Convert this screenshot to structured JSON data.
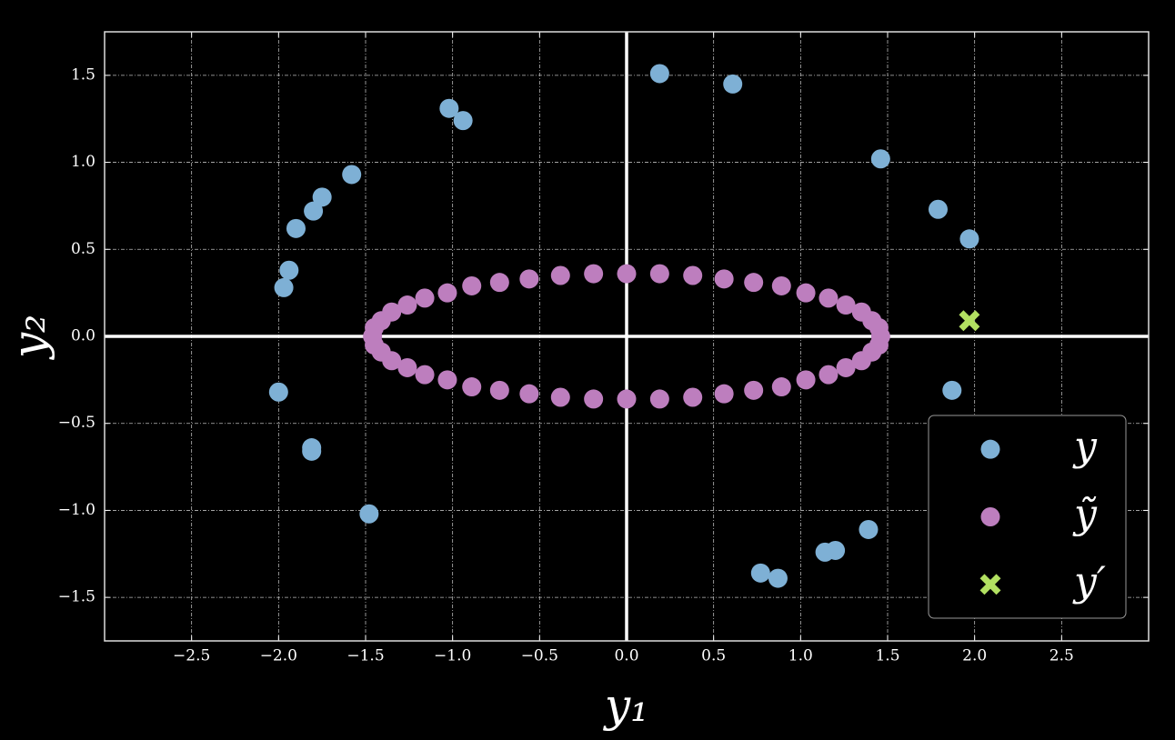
{
  "chart_data": {
    "type": "scatter",
    "x_label": "y₁",
    "y_label": "y₂",
    "xlim": [
      -3,
      3
    ],
    "ylim": [
      -1.75,
      1.75
    ],
    "xticks": [
      {
        "value": -2.5,
        "label": "−2.5"
      },
      {
        "value": -2,
        "label": "−2.0"
      },
      {
        "value": -1.5,
        "label": "−1.5"
      },
      {
        "value": -1,
        "label": "−1.0"
      },
      {
        "value": -0.5,
        "label": "−0.5"
      },
      {
        "value": 0,
        "label": "0.0"
      },
      0.5,
      {
        "value": 1,
        "label": "1.0"
      },
      1.5,
      {
        "value": 2,
        "label": "2.0"
      },
      2.5
    ],
    "yticks": [
      {
        "value": -1.5,
        "label": "−1.5"
      },
      {
        "value": -1,
        "label": "−1.0"
      },
      {
        "value": -0.5,
        "label": "−0.5"
      },
      {
        "value": 0,
        "label": "0.0"
      },
      0.5,
      {
        "value": 1,
        "label": "1.0"
      },
      1.5
    ],
    "grid": true,
    "hline": 0,
    "vline": 0,
    "legend": "lower right",
    "series": [
      {
        "name": "y",
        "color": "#7eb0d5",
        "marker": "o",
        "x": [
          0.19,
          0.61,
          -1.02,
          -0.94,
          -1.58,
          -1.75,
          -1.8,
          -1.9,
          -1.94,
          -1.97,
          1.46,
          1.79,
          1.97,
          1.87,
          -2.0,
          -1.81,
          -1.81,
          -1.48,
          0.77,
          0.87,
          1.14,
          1.2,
          1.39
        ],
        "y": [
          1.51,
          1.45,
          1.31,
          1.24,
          0.93,
          0.8,
          0.72,
          0.62,
          0.38,
          0.28,
          1.02,
          0.73,
          0.56,
          -0.31,
          -0.32,
          -0.64,
          -0.66,
          -1.02,
          -1.36,
          -1.39,
          -1.24,
          -1.23,
          -1.11
        ]
      },
      {
        "name": "ỹ",
        "color": "#bd7ebe",
        "marker": "o",
        "x": [
          1.46,
          1.45,
          1.41,
          1.35,
          1.26,
          1.16,
          1.03,
          0.89,
          0.73,
          0.56,
          0.38,
          0.19,
          0,
          -0.19,
          -0.38,
          -0.56,
          -0.73,
          -0.89,
          -1.03,
          -1.16,
          -1.26,
          -1.35,
          -1.41,
          -1.45,
          -1.46,
          -1.45,
          -1.41,
          -1.35,
          -1.26,
          -1.16,
          -1.03,
          -0.89,
          -0.73,
          -0.56,
          -0.38,
          -0.19,
          0,
          0.19,
          0.38,
          0.56,
          0.73,
          0.89,
          1.03,
          1.16,
          1.26,
          1.35,
          1.41,
          1.45
        ],
        "y": [
          0,
          0.05,
          0.09,
          0.14,
          0.18,
          0.22,
          0.25,
          0.29,
          0.31,
          0.33,
          0.35,
          0.36,
          0.36,
          0.36,
          0.35,
          0.33,
          0.31,
          0.29,
          0.25,
          0.22,
          0.18,
          0.14,
          0.09,
          0.05,
          0,
          -0.05,
          -0.09,
          -0.14,
          -0.18,
          -0.22,
          -0.25,
          -0.29,
          -0.31,
          -0.33,
          -0.35,
          -0.36,
          -0.36,
          -0.36,
          -0.35,
          -0.33,
          -0.31,
          -0.29,
          -0.25,
          -0.22,
          -0.18,
          -0.14,
          -0.09,
          -0.05
        ]
      },
      {
        "name": "y′",
        "color": "#b2e061",
        "marker": "x",
        "x": [
          1.97
        ],
        "y": [
          0.09
        ]
      }
    ]
  }
}
